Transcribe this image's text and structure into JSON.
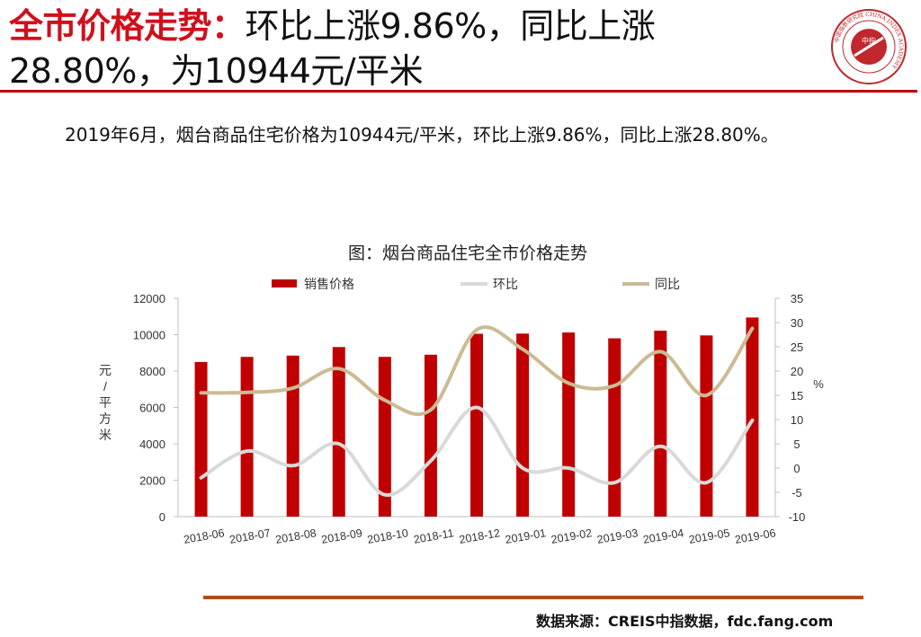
{
  "header": {
    "title_lead": "全市价格走势：",
    "title_rest": "环比上涨9.86%，同比上涨28.80%，为10944元/平米"
  },
  "logo": {
    "ring_text": "中国指数研究院 CHINA INDEX ACADEMY",
    "center_text": "中指"
  },
  "summary": "2019年6月，烟台商品住宅价格为10944元/平米，环比上涨9.86%，同比上涨28.80%。",
  "chart_data": {
    "type": "bar",
    "title": "图：烟台商品住宅全市价格走势",
    "categories": [
      "2018-06",
      "2018-07",
      "2018-08",
      "2018-09",
      "2018-10",
      "2018-11",
      "2018-12",
      "2019-01",
      "2019-02",
      "2019-03",
      "2019-04",
      "2019-05",
      "2019-06"
    ],
    "series": [
      {
        "name": "销售价格",
        "kind": "bar",
        "axis": "left",
        "color": "#c00000",
        "values": [
          8500,
          8780,
          8850,
          9320,
          8780,
          8900,
          10050,
          10060,
          10120,
          9800,
          10220,
          9960,
          10944
        ]
      },
      {
        "name": "环比",
        "kind": "line",
        "axis": "right",
        "color": "#d9d9d9",
        "values": [
          -2,
          3.5,
          0.5,
          5,
          -5.5,
          1.5,
          12.5,
          0,
          0,
          -3,
          4.5,
          -3,
          9.86
        ]
      },
      {
        "name": "同比",
        "kind": "line",
        "axis": "right",
        "color": "#cbbb94",
        "values": [
          15.5,
          15.6,
          16.5,
          20.5,
          14,
          12,
          28.5,
          24.5,
          17.5,
          17,
          24,
          15,
          28.8
        ]
      }
    ],
    "ylabel": "元/平方米",
    "ylim": [
      0,
      12000
    ],
    "yticks": [
      "0",
      "2000",
      "4000",
      "6000",
      "8000",
      "10000",
      "12000"
    ],
    "y2label": "%",
    "y2lim": [
      -10,
      35
    ],
    "y2ticks": [
      "-10",
      "-5",
      "0",
      "5",
      "10",
      "15",
      "20",
      "25",
      "30",
      "35"
    ],
    "legend_position": "top",
    "grid": false
  },
  "source": "数据来源：CREIS中指数据，fdc.fang.com"
}
